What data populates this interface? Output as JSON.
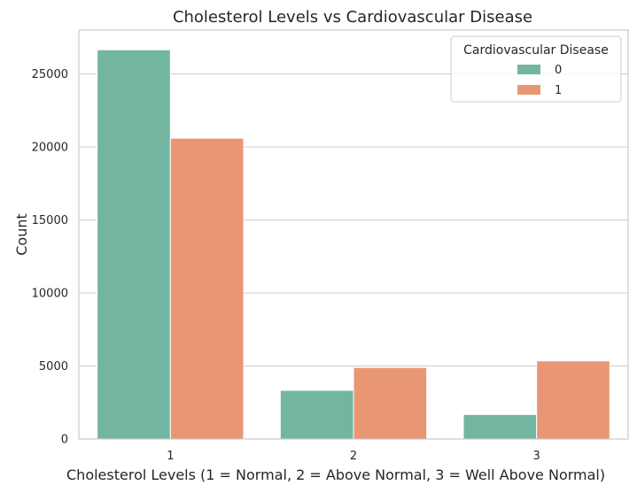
{
  "chart_data": {
    "type": "bar",
    "title": "Cholesterol Levels vs Cardiovascular Disease",
    "xlabel": "Cholesterol Levels (1 = Normal, 2 = Above Normal, 3 = Well Above Normal)",
    "ylabel": "Count",
    "categories": [
      "1",
      "2",
      "3"
    ],
    "series": [
      {
        "name": "0",
        "values": [
          26650,
          3330,
          1680
        ],
        "color": "#72b6a1"
      },
      {
        "name": "1",
        "values": [
          20600,
          4900,
          5350
        ],
        "color": "#e99675"
      }
    ],
    "ylim": [
      0,
      28000
    ],
    "yticks": [
      0,
      5000,
      10000,
      15000,
      20000,
      25000
    ],
    "grid": true,
    "legend": {
      "title": "Cardiovascular Disease",
      "placement": "top-right"
    }
  }
}
